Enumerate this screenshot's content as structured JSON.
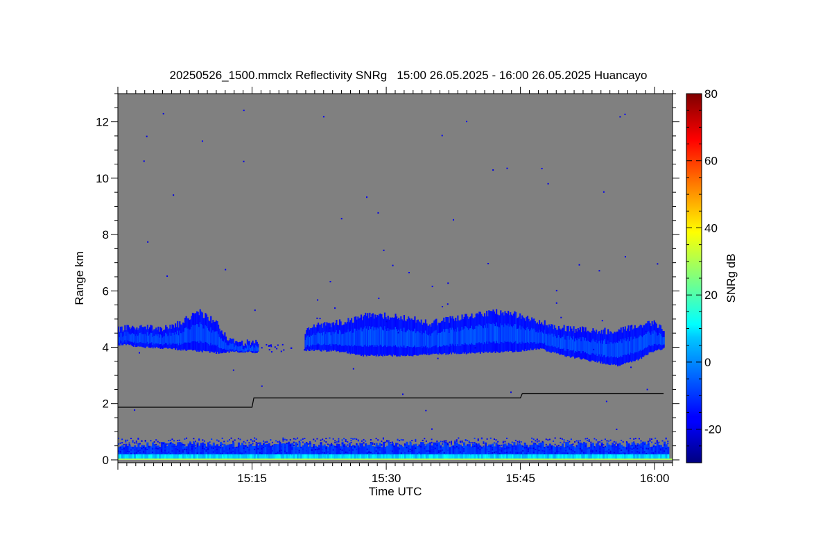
{
  "chart_data": {
    "type": "heatmap",
    "title": "20250526_1500.mmclx Reflectivity SNRg   15:00 26.05.2025 - 16:00 26.05.2025 Huancayo",
    "xlabel": "Time UTC",
    "ylabel": "Range km",
    "xlim": [
      "15:00",
      "16:02"
    ],
    "ylim": [
      -0.1,
      13
    ],
    "x_ticks": [
      "15:15",
      "15:30",
      "15:45",
      "16:00"
    ],
    "y_ticks": [
      0,
      2,
      4,
      6,
      8,
      10,
      12
    ],
    "background_color": "#808080",
    "colorbar": {
      "label": "SNRg dB",
      "range": [
        -30,
        80
      ],
      "ticks": [
        -20,
        0,
        20,
        40,
        60,
        80
      ],
      "colormap": "jet"
    },
    "cloud_layer": {
      "base_km": [
        [
          0,
          4.1
        ],
        [
          5,
          3.95
        ],
        [
          8,
          3.9
        ],
        [
          11,
          3.8
        ],
        [
          14,
          3.85
        ],
        [
          16,
          3.8
        ],
        [
          21,
          3.9
        ],
        [
          25,
          3.85
        ],
        [
          27,
          3.7
        ],
        [
          32,
          3.7
        ],
        [
          35,
          3.75
        ],
        [
          40,
          3.8
        ],
        [
          44,
          3.85
        ],
        [
          47,
          3.95
        ],
        [
          50,
          3.7
        ],
        [
          53,
          3.5
        ],
        [
          56,
          3.35
        ],
        [
          58,
          3.55
        ],
        [
          60,
          3.9
        ],
        [
          61,
          3.95
        ]
      ],
      "top_km": [
        [
          0,
          4.6
        ],
        [
          3,
          4.7
        ],
        [
          5,
          4.6
        ],
        [
          7,
          4.8
        ],
        [
          8,
          5.05
        ],
        [
          9,
          5.2
        ],
        [
          11,
          4.8
        ],
        [
          12,
          4.3
        ],
        [
          14,
          4.1
        ],
        [
          16,
          4.15
        ],
        [
          18,
          4.2
        ],
        [
          20,
          4.3
        ],
        [
          22,
          4.7
        ],
        [
          25,
          4.85
        ],
        [
          27,
          5.0
        ],
        [
          28,
          5.1
        ],
        [
          30,
          5.05
        ],
        [
          32,
          5.0
        ],
        [
          35,
          4.8
        ],
        [
          38,
          5.0
        ],
        [
          40,
          5.1
        ],
        [
          41,
          5.15
        ],
        [
          43,
          5.2
        ],
        [
          45,
          5.05
        ],
        [
          47,
          4.85
        ],
        [
          50,
          4.6
        ],
        [
          53,
          4.55
        ],
        [
          55,
          4.5
        ],
        [
          58,
          4.7
        ],
        [
          60,
          4.8
        ],
        [
          61,
          4.6
        ]
      ],
      "peak_snr_db": -8
    },
    "black_line_km": [
      [
        0,
        1.87
      ],
      [
        15,
        1.87
      ],
      [
        15.2,
        2.2
      ],
      [
        45,
        2.2
      ],
      [
        45.2,
        2.35
      ],
      [
        61,
        2.35
      ]
    ],
    "near_surface_clutter": {
      "range_km": [
        0,
        0.8
      ],
      "snr_db": [
        -20,
        30
      ]
    }
  }
}
